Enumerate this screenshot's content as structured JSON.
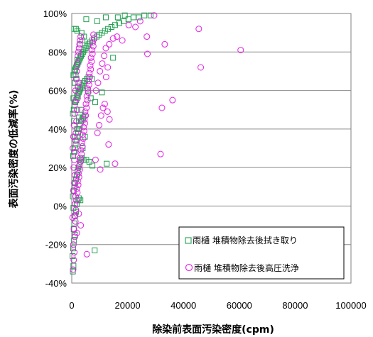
{
  "chart_data": {
    "type": "scatter",
    "title": "",
    "xlabel": "除染前表面汚染密度(cpm)",
    "ylabel": "表面汚染密度の低減率(%)",
    "xlim": [
      0,
      100000
    ],
    "ylim": [
      -40,
      100
    ],
    "x_ticks": [
      0,
      20000,
      40000,
      60000,
      80000,
      100000
    ],
    "x_tick_labels": [
      "0",
      "20000",
      "40000",
      "60000",
      "80000",
      "100000"
    ],
    "y_ticks": [
      -40,
      -20,
      0,
      20,
      40,
      60,
      80,
      100
    ],
    "y_tick_labels": [
      "-40%",
      "-20%",
      "0%",
      "20%",
      "40%",
      "60%",
      "80%",
      "100%"
    ],
    "grid": "horizontal",
    "legend_position": "bottom-right",
    "series": [
      {
        "name": "雨樋 堆積物除去後拭き取り",
        "marker": "square",
        "color": "#22a050",
        "points": [
          [
            400,
            -34
          ],
          [
            600,
            -31
          ],
          [
            300,
            -26
          ],
          [
            500,
            -22
          ],
          [
            800,
            -18
          ],
          [
            1100,
            -15
          ],
          [
            700,
            -12
          ],
          [
            900,
            -9
          ],
          [
            1300,
            -5
          ],
          [
            1500,
            -3
          ],
          [
            600,
            -1
          ],
          [
            1800,
            1
          ],
          [
            2200,
            3
          ],
          [
            2600,
            4
          ],
          [
            3100,
            3
          ],
          [
            400,
            5
          ],
          [
            700,
            8
          ],
          [
            1000,
            10
          ],
          [
            1200,
            12
          ],
          [
            1500,
            14
          ],
          [
            1800,
            16
          ],
          [
            2100,
            18
          ],
          [
            2400,
            20
          ],
          [
            2800,
            22
          ],
          [
            3200,
            24
          ],
          [
            3600,
            25
          ],
          [
            4200,
            24
          ],
          [
            5200,
            24
          ],
          [
            6300,
            23
          ],
          [
            7400,
            21
          ],
          [
            12500,
            22
          ],
          [
            8200,
            -23
          ],
          [
            500,
            26
          ],
          [
            800,
            28
          ],
          [
            1100,
            30
          ],
          [
            1400,
            32
          ],
          [
            1700,
            34
          ],
          [
            2000,
            36
          ],
          [
            2300,
            38
          ],
          [
            2600,
            40
          ],
          [
            2900,
            42
          ],
          [
            3300,
            44
          ],
          [
            3700,
            45
          ],
          [
            4100,
            46
          ],
          [
            4600,
            47
          ],
          [
            400,
            48
          ],
          [
            700,
            50
          ],
          [
            1000,
            52
          ],
          [
            1300,
            54
          ],
          [
            1600,
            55
          ],
          [
            1900,
            57
          ],
          [
            2200,
            58
          ],
          [
            2500,
            59
          ],
          [
            2800,
            60
          ],
          [
            3100,
            61
          ],
          [
            3500,
            62
          ],
          [
            3900,
            63
          ],
          [
            4300,
            64
          ],
          [
            4800,
            65
          ],
          [
            5400,
            66
          ],
          [
            6000,
            67
          ],
          [
            7200,
            66
          ],
          [
            5800,
            60
          ],
          [
            10800,
            59
          ],
          [
            6800,
            56
          ],
          [
            8400,
            54
          ],
          [
            600,
            68
          ],
          [
            900,
            70
          ],
          [
            1200,
            71
          ],
          [
            1500,
            72
          ],
          [
            1800,
            73
          ],
          [
            2100,
            74
          ],
          [
            2400,
            75
          ],
          [
            2700,
            76
          ],
          [
            3000,
            77
          ],
          [
            3300,
            78
          ],
          [
            3700,
            79
          ],
          [
            4100,
            80
          ],
          [
            4500,
            81
          ],
          [
            5000,
            82
          ],
          [
            5500,
            83
          ],
          [
            6000,
            84
          ],
          [
            6600,
            85
          ],
          [
            7300,
            86
          ],
          [
            8000,
            87
          ],
          [
            8900,
            88
          ],
          [
            9800,
            89
          ],
          [
            10800,
            90
          ],
          [
            11900,
            91
          ],
          [
            13000,
            92
          ],
          [
            14200,
            93
          ],
          [
            15500,
            94
          ],
          [
            17000,
            95
          ],
          [
            18600,
            96
          ],
          [
            20300,
            97
          ],
          [
            22100,
            98
          ],
          [
            24000,
            98
          ],
          [
            26000,
            99
          ],
          [
            28200,
            99
          ],
          [
            1500,
            92
          ],
          [
            900,
            92
          ],
          [
            2000,
            91
          ],
          [
            3500,
            90
          ],
          [
            14800,
            77
          ],
          [
            5200,
            97
          ],
          [
            9100,
            96
          ],
          [
            16500,
            98
          ],
          [
            19000,
            99
          ],
          [
            12200,
            98
          ],
          [
            2200,
            62
          ],
          [
            1700,
            66
          ],
          [
            3400,
            50
          ],
          [
            4700,
            36
          ],
          [
            3900,
            30
          ],
          [
            2600,
            46
          ],
          [
            1900,
            40
          ],
          [
            1200,
            36
          ],
          [
            800,
            44
          ],
          [
            600,
            56
          ],
          [
            1100,
            64
          ],
          [
            1400,
            68
          ],
          [
            2000,
            76
          ],
          [
            2900,
            84
          ],
          [
            3800,
            86
          ],
          [
            4400,
            88
          ]
        ]
      },
      {
        "name": "雨樋 堆積物除去後高圧洗浄",
        "marker": "circle",
        "color": "#e61ee6",
        "points": [
          [
            500,
            -33
          ],
          [
            700,
            -28
          ],
          [
            900,
            -24
          ],
          [
            600,
            -20
          ],
          [
            1100,
            -16
          ],
          [
            800,
            -12
          ],
          [
            1300,
            -8
          ],
          [
            1000,
            -5
          ],
          [
            1500,
            -2
          ],
          [
            1200,
            1
          ],
          [
            1700,
            3
          ],
          [
            1400,
            5
          ],
          [
            2000,
            7
          ],
          [
            1800,
            9
          ],
          [
            2300,
            11
          ],
          [
            2100,
            13
          ],
          [
            2600,
            15
          ],
          [
            2400,
            17
          ],
          [
            2900,
            19
          ],
          [
            2700,
            21
          ],
          [
            3200,
            23
          ],
          [
            3000,
            25
          ],
          [
            3500,
            27
          ],
          [
            3300,
            29
          ],
          [
            3800,
            31
          ],
          [
            3600,
            33
          ],
          [
            4100,
            35
          ],
          [
            3900,
            37
          ],
          [
            4400,
            39
          ],
          [
            4200,
            41
          ],
          [
            4700,
            43
          ],
          [
            4500,
            45
          ],
          [
            5000,
            47
          ],
          [
            4800,
            49
          ],
          [
            5300,
            51
          ],
          [
            5100,
            53
          ],
          [
            5600,
            55
          ],
          [
            5400,
            57
          ],
          [
            5900,
            59
          ],
          [
            5700,
            61
          ],
          [
            6200,
            63
          ],
          [
            6000,
            65
          ],
          [
            6500,
            67
          ],
          [
            6300,
            69
          ],
          [
            6800,
            71
          ],
          [
            6600,
            73
          ],
          [
            7100,
            75
          ],
          [
            6900,
            77
          ],
          [
            7400,
            79
          ],
          [
            7200,
            81
          ],
          [
            7700,
            83
          ],
          [
            7500,
            85
          ],
          [
            8000,
            87
          ],
          [
            7800,
            89
          ],
          [
            5400,
            -25
          ],
          [
            10200,
            19
          ],
          [
            15500,
            22
          ],
          [
            13200,
            32
          ],
          [
            11800,
            53
          ],
          [
            12800,
            49
          ],
          [
            13500,
            45
          ],
          [
            12300,
            67
          ],
          [
            12900,
            72
          ],
          [
            13400,
            84
          ],
          [
            14800,
            87
          ],
          [
            16200,
            88
          ],
          [
            18100,
            86
          ],
          [
            20400,
            94
          ],
          [
            22800,
            93
          ],
          [
            24500,
            96
          ],
          [
            26900,
            88
          ],
          [
            27100,
            79
          ],
          [
            29500,
            99
          ],
          [
            32300,
            51
          ],
          [
            33300,
            84
          ],
          [
            36100,
            55
          ],
          [
            31800,
            27
          ],
          [
            45500,
            92
          ],
          [
            46200,
            72
          ],
          [
            60500,
            81
          ],
          [
            400,
            30
          ],
          [
            600,
            36
          ],
          [
            800,
            42
          ],
          [
            1000,
            48
          ],
          [
            1200,
            54
          ],
          [
            1400,
            60
          ],
          [
            1600,
            66
          ],
          [
            1800,
            70
          ],
          [
            2000,
            74
          ],
          [
            2200,
            78
          ],
          [
            2400,
            80
          ],
          [
            2600,
            82
          ],
          [
            2800,
            84
          ],
          [
            3000,
            86
          ],
          [
            3200,
            88
          ],
          [
            700,
            20
          ],
          [
            900,
            24
          ],
          [
            1100,
            28
          ],
          [
            1300,
            34
          ],
          [
            1500,
            38
          ],
          [
            1700,
            44
          ],
          [
            1900,
            50
          ],
          [
            2100,
            56
          ],
          [
            2300,
            62
          ],
          [
            2500,
            64
          ],
          [
            8500,
            24
          ],
          [
            9200,
            38
          ],
          [
            9800,
            42
          ],
          [
            10500,
            47
          ],
          [
            11200,
            51
          ],
          [
            8700,
            60
          ],
          [
            9400,
            64
          ],
          [
            10100,
            70
          ],
          [
            10900,
            74
          ],
          [
            11600,
            78
          ],
          [
            12200,
            82
          ],
          [
            2500,
            -4
          ],
          [
            3200,
            -10
          ],
          [
            1800,
            -14
          ],
          [
            600,
            8
          ],
          [
            900,
            12
          ],
          [
            1100,
            16
          ],
          [
            300,
            -6
          ]
        ]
      }
    ]
  }
}
